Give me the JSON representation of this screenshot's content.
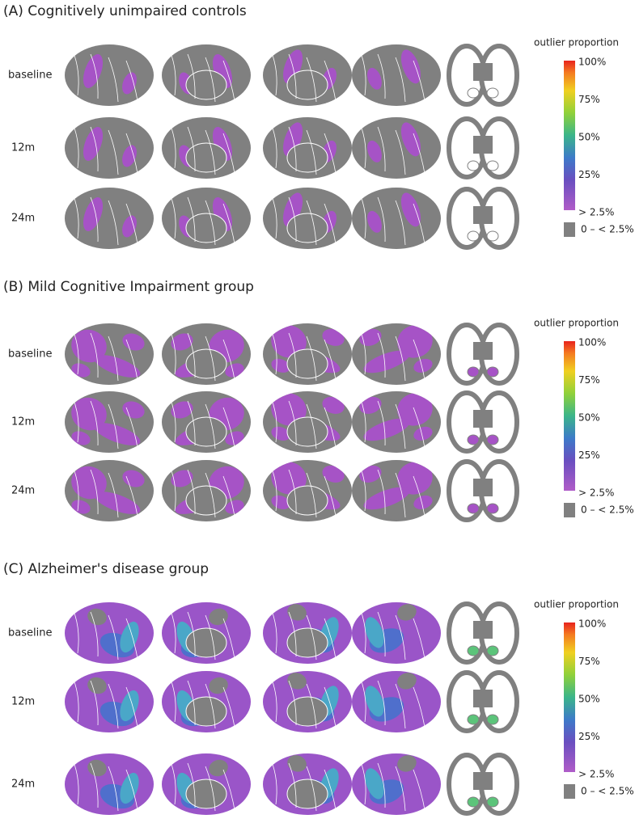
{
  "panels": [
    {
      "title": "(A)  Cognitively unimpaired controls",
      "rows": [
        "baseline",
        "12m",
        "24m"
      ],
      "legend": {
        "title": "outlier proportion",
        "labels": [
          "100%",
          "75%",
          "50%",
          "25%",
          "> 2.5%"
        ],
        "gray_label": "0 – < 2.5%"
      }
    },
    {
      "title": "(B)  Mild Cognitive Impairment group",
      "rows": [
        "baseline",
        "12m",
        "24m"
      ],
      "legend": {
        "title": "outlier proportion",
        "labels": [
          "100%",
          "75%",
          "50%",
          "25%",
          "> 2.5%"
        ],
        "gray_label": "0 – < 2.5%"
      }
    },
    {
      "title": "(C)  Alzheimer's disease group",
      "rows": [
        "baseline",
        "12m",
        "24m"
      ],
      "legend": {
        "title": "outlier proportion",
        "labels": [
          "100%",
          "75%",
          "50%",
          "25%",
          "> 2.5%"
        ],
        "gray_label": "0 – < 2.5%"
      }
    }
  ]
}
